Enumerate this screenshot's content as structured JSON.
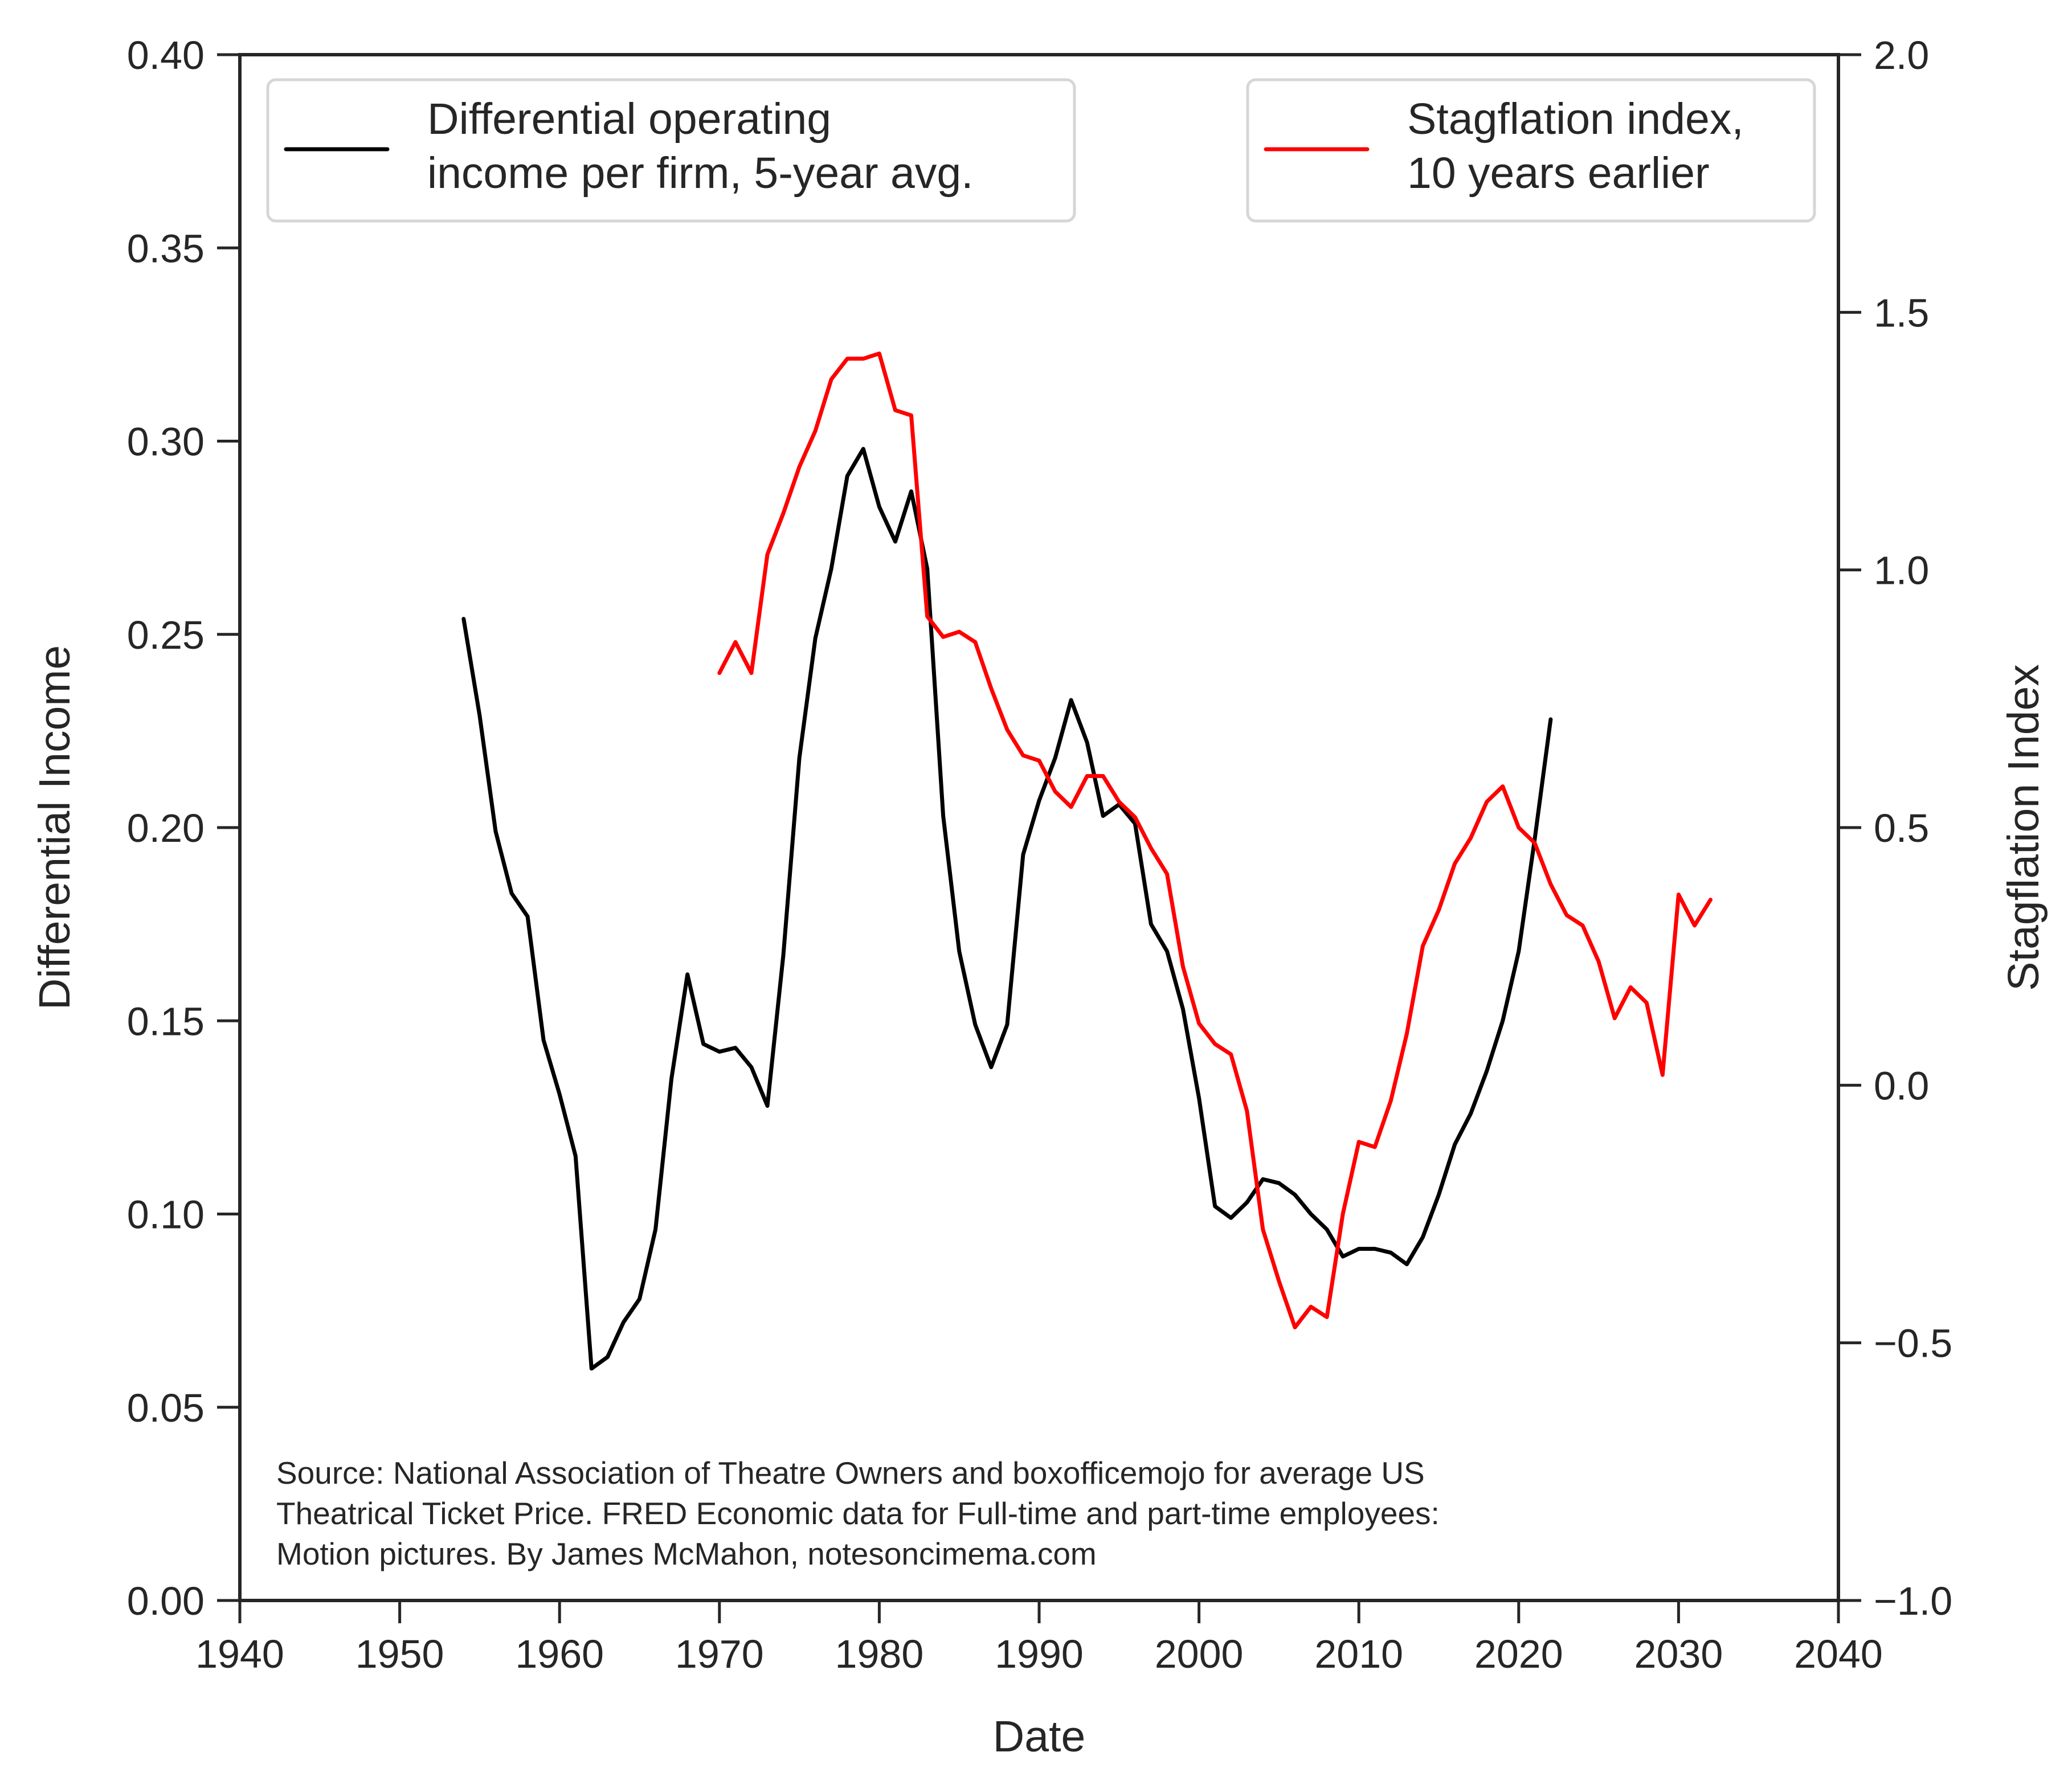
{
  "chart_data": {
    "type": "line",
    "title": "",
    "xlabel": "Date",
    "ylabel": "Differential Income",
    "ylabel_right": "Stagflation Index",
    "xlim": [
      1940,
      2040
    ],
    "ylim": [
      0.0,
      0.4
    ],
    "ylim_right": [
      -1.0,
      2.0
    ],
    "grid": false,
    "x_ticks": [
      "1940",
      "1950",
      "1960",
      "1970",
      "1980",
      "1990",
      "2000",
      "2010",
      "2020",
      "2030",
      "2040"
    ],
    "x_tick_values": [
      1940,
      1950,
      1960,
      1970,
      1980,
      1990,
      2000,
      2010,
      2020,
      2030,
      2040
    ],
    "y_ticks": [
      "0.00",
      "0.05",
      "0.10",
      "0.15",
      "0.20",
      "0.25",
      "0.30",
      "0.35",
      "0.40"
    ],
    "y_tick_values": [
      0.0,
      0.05,
      0.1,
      0.15,
      0.2,
      0.25,
      0.3,
      0.35,
      0.4
    ],
    "y_ticks_right": [
      "−1.0",
      "−0.5",
      "0.0",
      "0.5",
      "1.0",
      "1.5",
      "2.0"
    ],
    "y_tick_values_right": [
      -1.0,
      -0.5,
      0.0,
      0.5,
      1.0,
      1.5,
      2.0
    ],
    "series": [
      {
        "name": "Differential operating income per firm, 5-year avg.",
        "legend_lines": [
          "Differential operating",
          "income per firm, 5-year avg."
        ],
        "axis": "left",
        "color": "#000000",
        "legend_position": "top-left",
        "x": [
          1954,
          1955,
          1956,
          1957,
          1958,
          1959,
          1960,
          1961,
          1962,
          1963,
          1964,
          1965,
          1966,
          1967,
          1968,
          1969,
          1970,
          1971,
          1972,
          1973,
          1974,
          1975,
          1976,
          1977,
          1978,
          1979,
          1980,
          1981,
          1982,
          1983,
          1984,
          1985,
          1986,
          1987,
          1988,
          1989,
          1990,
          1991,
          1992,
          1993,
          1994,
          1995,
          1996,
          1997,
          1998,
          1999,
          2000,
          2001,
          2002,
          2003,
          2004,
          2005,
          2006,
          2007,
          2008,
          2009,
          2010,
          2011,
          2012,
          2013,
          2014,
          2015,
          2016,
          2017,
          2018,
          2019,
          2020,
          2021,
          2022
        ],
        "values": [
          0.254,
          0.229,
          0.199,
          0.183,
          0.177,
          0.145,
          0.131,
          0.115,
          0.06,
          0.063,
          0.072,
          0.078,
          0.096,
          0.135,
          0.162,
          0.144,
          0.142,
          0.143,
          0.138,
          0.128,
          0.167,
          0.218,
          0.249,
          0.267,
          0.291,
          0.298,
          0.283,
          0.274,
          0.287,
          0.267,
          0.203,
          0.168,
          0.149,
          0.138,
          0.149,
          0.193,
          0.207,
          0.218,
          0.233,
          0.222,
          0.203,
          0.206,
          0.201,
          0.175,
          0.168,
          0.153,
          0.13,
          0.102,
          0.099,
          0.103,
          0.109,
          0.108,
          0.105,
          0.1,
          0.096,
          0.089,
          0.091,
          0.091,
          0.09,
          0.087,
          0.094,
          0.105,
          0.118,
          0.126,
          0.137,
          0.15,
          0.168,
          0.197,
          0.228
        ]
      },
      {
        "name": "Stagflation index, 10 years earlier",
        "legend_lines": [
          "Stagflation index,",
          "10 years earlier"
        ],
        "axis": "right",
        "color": "#ff0000",
        "legend_position": "top-right",
        "x": [
          1970,
          1971,
          1972,
          1973,
          1974,
          1975,
          1976,
          1977,
          1978,
          1979,
          1980,
          1981,
          1982,
          1983,
          1984,
          1985,
          1986,
          1987,
          1988,
          1989,
          1990,
          1991,
          1992,
          1993,
          1994,
          1995,
          1996,
          1997,
          1998,
          1999,
          2000,
          2001,
          2002,
          2003,
          2004,
          2005,
          2006,
          2007,
          2008,
          2009,
          2010,
          2011,
          2012,
          2013,
          2014,
          2015,
          2016,
          2017,
          2018,
          2019,
          2020,
          2021,
          2022,
          2023,
          2024,
          2025,
          2026,
          2027,
          2028,
          2029,
          2030,
          2031,
          2032
        ],
        "values": [
          0.8,
          0.86,
          0.8,
          1.03,
          1.11,
          1.2,
          1.27,
          1.37,
          1.41,
          1.41,
          1.42,
          1.31,
          1.3,
          0.91,
          0.87,
          0.88,
          0.86,
          0.77,
          0.69,
          0.64,
          0.63,
          0.57,
          0.54,
          0.6,
          0.6,
          0.55,
          0.52,
          0.46,
          0.41,
          0.23,
          0.12,
          0.08,
          0.06,
          -0.05,
          -0.28,
          -0.38,
          -0.47,
          -0.43,
          -0.45,
          -0.25,
          -0.11,
          -0.12,
          -0.03,
          0.1,
          0.27,
          0.34,
          0.43,
          0.48,
          0.55,
          0.58,
          0.5,
          0.47,
          0.39,
          0.33,
          0.31,
          0.24,
          0.13,
          0.19,
          0.16,
          0.02,
          0.37,
          0.31,
          0.36
        ]
      }
    ],
    "annotation": [
      "Source: National Association of Theatre Owners and boxofficemojo for average US",
      "Theatrical Ticket Price. FRED Economic data for Full-time and part-time employees:",
      "Motion pictures. By James McMahon, notesoncimema.com"
    ]
  }
}
